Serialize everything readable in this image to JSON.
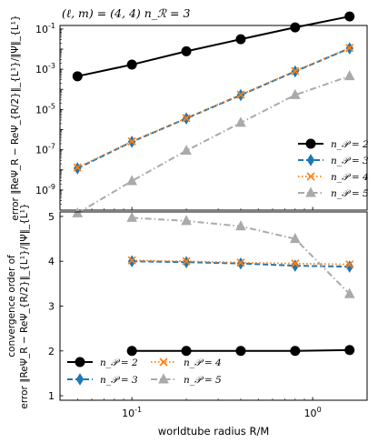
{
  "chart_data": {
    "title": "(ℓ, m) = (4, 4)    n_ℛ = 3",
    "xlabel": "worldtube radius R/M",
    "xscale": "log",
    "xlim": [
      0.04,
      2.0
    ],
    "x_ticks": [
      "10^-1",
      "10^0"
    ],
    "panels": [
      {
        "type": "line",
        "name": "error",
        "ylabel": "error ‖ReΨ_R − ReΨ_{R/2}‖_{L¹}/‖Ψ‖_{L¹}",
        "yscale": "log",
        "ylim": [
          1e-10,
          0.15
        ],
        "y_ticks": [
          "10^-9",
          "10^-7",
          "10^-5",
          "10^-3",
          "10^-1"
        ],
        "legend_position": "lower-right",
        "x": [
          0.05,
          0.1,
          0.2,
          0.4,
          0.8,
          1.6
        ],
        "series": [
          {
            "name": "n_𝒫 = 2",
            "color": "#000000",
            "values": [
              0.00045,
              0.0017,
              0.0078,
              0.031,
              0.12,
              0.42
            ]
          },
          {
            "name": "n_𝒫 = 3",
            "color": "#1f77b4",
            "values": [
              1.2e-08,
              2.5e-07,
              3.6e-06,
              5.2e-05,
              0.00078,
              0.011
            ]
          },
          {
            "name": "n_𝒫 = 4",
            "color": "#ff7f0e",
            "values": [
              1.3e-08,
              2.6e-07,
              3.7e-06,
              5.5e-05,
              0.00082,
              0.0115
            ]
          },
          {
            "name": "n_𝒫 = 5",
            "color": "#aaaaaa",
            "values": [
              7e-11,
              2.8e-09,
              9e-08,
              2.2e-06,
              5.3e-05,
              0.00046
            ]
          }
        ]
      },
      {
        "type": "line",
        "name": "convergence",
        "ylabel": "convergence order of error ‖ReΨ_R − ReΨ_{R/2}‖_{L¹}/‖Ψ‖_{L¹}",
        "yscale": "linear",
        "ylim": [
          0.9,
          5.1
        ],
        "y_ticks": [
          "1",
          "2",
          "3",
          "4",
          "5"
        ],
        "legend_position": "lower-center",
        "x": [
          0.1,
          0.2,
          0.4,
          0.8,
          1.6
        ],
        "series": [
          {
            "name": "n_𝒫 = 2",
            "color": "#000000",
            "values": [
              2.0,
              2.0,
              2.0,
              2.0,
              2.02
            ]
          },
          {
            "name": "n_𝒫 = 3",
            "color": "#1f77b4",
            "values": [
              4.0,
              3.98,
              3.95,
              3.9,
              3.88
            ]
          },
          {
            "name": "n_𝒫 = 4",
            "color": "#ff7f0e",
            "values": [
              4.02,
              4.0,
              3.97,
              3.95,
              3.93
            ]
          },
          {
            "name": "n_𝒫 = 5",
            "color": "#aaaaaa",
            "values": [
              4.97,
              4.9,
              4.78,
              4.5,
              3.27
            ]
          }
        ]
      }
    ]
  },
  "colors": {
    "axes": "#000000",
    "background": "#ffffff"
  }
}
